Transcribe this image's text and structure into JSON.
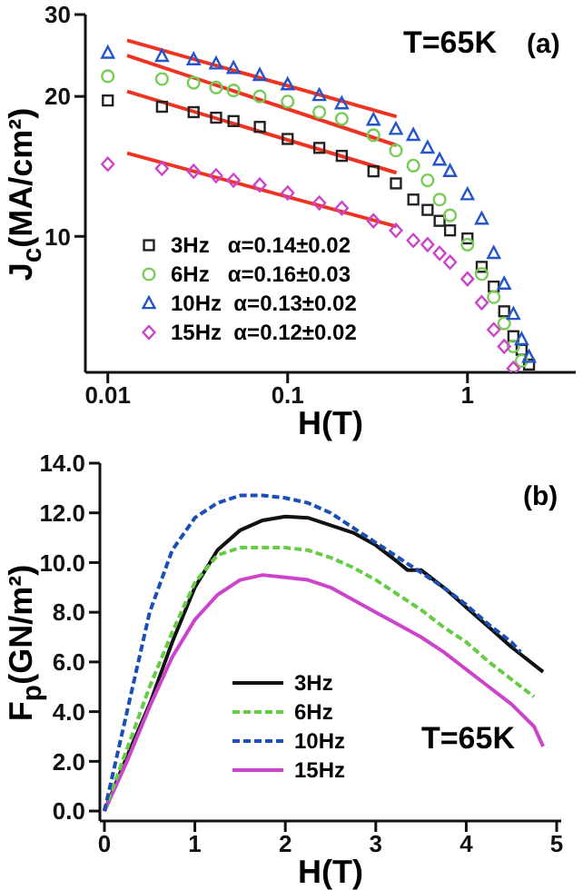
{
  "chart_data": [
    {
      "type": "scatter",
      "xlabel": "H(T)",
      "ylabel": "J$_{c}$(MA/cm²)",
      "annotations": [
        "T=65K",
        "(a)"
      ],
      "log": "xy",
      "xlim": [
        0.0075,
        4
      ],
      "xticks": [
        0.01,
        0.1,
        1
      ],
      "ylim": [
        5.1,
        30
      ],
      "yticks": [
        10,
        20,
        30
      ],
      "legend": "bottom left",
      "x": [
        0.01,
        0.02,
        0.03,
        0.04,
        0.05,
        0.07,
        0.1,
        0.15,
        0.2,
        0.3,
        0.4,
        0.5,
        0.6,
        0.7,
        0.8,
        1.0,
        1.2,
        1.4,
        1.6,
        1.8,
        2.0,
        2.2
      ],
      "series": [
        {
          "name": "3Hz   α=0.14±0.02",
          "color": "#222222",
          "marker": "square",
          "values": [
            19.6,
            19.0,
            18.5,
            18.0,
            17.7,
            17.2,
            16.2,
            15.5,
            14.9,
            13.8,
            13.0,
            12.0,
            11.4,
            10.8,
            10.3,
            9.9,
            8.6,
            7.8,
            6.9,
            6.1,
            5.7,
            5.3
          ]
        },
        {
          "name": "6Hz   α=0.16±0.03",
          "color": "#77cc55",
          "marker": "circle",
          "values": [
            22.1,
            21.8,
            21.4,
            20.9,
            20.6,
            20.0,
            19.5,
            18.5,
            17.9,
            16.5,
            15.3,
            14.2,
            13.2,
            12.0,
            11.1,
            9.6,
            8.3,
            7.4,
            6.5,
            5.8,
            5.4,
            null
          ]
        },
        {
          "name": "10Hz  α=0.13±0.02",
          "color": "#2255cc",
          "marker": "triangle",
          "values": [
            24.8,
            24.4,
            24.0,
            23.5,
            23.0,
            22.2,
            21.2,
            20.1,
            19.3,
            17.8,
            17.0,
            16.5,
            15.5,
            14.6,
            13.8,
            12.3,
            10.9,
            9.2,
            7.9,
            6.8,
            6.0,
            5.5
          ]
        },
        {
          "name": "15Hz  α=0.12±0.02",
          "color": "#cc44cc",
          "marker": "diamond",
          "values": [
            14.3,
            14.0,
            13.8,
            13.5,
            13.2,
            12.9,
            12.4,
            11.8,
            11.5,
            10.8,
            10.3,
            9.8,
            9.6,
            9.2,
            8.8,
            8.1,
            7.2,
            6.3,
            5.8,
            5.2,
            null,
            null
          ]
        },
        {
          "type": "line",
          "color": "#ee3322",
          "x": [
            0.0128,
            0.403
          ],
          "values": [
            26.4,
            18.1
          ]
        },
        {
          "type": "line",
          "color": "#ee3322",
          "x": [
            0.0128,
            0.403
          ],
          "values": [
            24.5,
            15.7
          ]
        },
        {
          "type": "line",
          "color": "#ee3322",
          "x": [
            0.0128,
            0.403
          ],
          "values": [
            20.5,
            13.7
          ]
        },
        {
          "type": "line",
          "color": "#ee3322",
          "x": [
            0.0128,
            0.403
          ],
          "values": [
            15.1,
            10.5
          ]
        }
      ]
    },
    {
      "type": "line",
      "xlabel": "H(T)",
      "ylabel": "F$_{p}$(GN/m²)",
      "annotations": [
        "(b)",
        "T=65K"
      ],
      "xlim": [
        -0.05,
        5.05
      ],
      "xticks": [
        0,
        1,
        2,
        3,
        4,
        5
      ],
      "ylim": [
        -0.4,
        14
      ],
      "yticks": [
        {
          "value": 0,
          "label": "0.0"
        },
        {
          "value": 2,
          "label": "2.0"
        },
        {
          "value": 4,
          "label": "4.0"
        },
        {
          "value": 6,
          "label": "6.0"
        },
        {
          "value": 8,
          "label": "8.0"
        },
        {
          "value": 10,
          "label": "10.0"
        },
        {
          "value": 12,
          "label": "12.0"
        },
        {
          "value": 14,
          "label": "14.0"
        }
      ],
      "legend": "bottom left",
      "series": [
        {
          "name": "3Hz",
          "color": "#111111",
          "line_style": "solid",
          "x": [
            0,
            0.25,
            0.5,
            0.75,
            1.0,
            1.25,
            1.5,
            1.75,
            2.0,
            2.25,
            2.5,
            2.75,
            3.0,
            3.25,
            3.35,
            3.5,
            3.75,
            4.0,
            4.25,
            4.5,
            4.85
          ],
          "values": [
            0,
            2.2,
            4.3,
            6.8,
            9.0,
            10.5,
            11.3,
            11.7,
            11.85,
            11.8,
            11.5,
            11.2,
            10.7,
            10.0,
            9.7,
            9.7,
            9.0,
            8.2,
            7.4,
            6.6,
            5.6
          ]
        },
        {
          "name": "6Hz",
          "color": "#66cc44",
          "line_style": "dashed",
          "x": [
            0,
            0.25,
            0.5,
            0.75,
            1.0,
            1.25,
            1.5,
            1.75,
            2.0,
            2.25,
            2.5,
            2.75,
            3.0,
            3.25,
            3.5,
            3.75,
            4.0,
            4.25,
            4.5,
            4.75
          ],
          "values": [
            0,
            2.5,
            5.0,
            7.2,
            9.2,
            10.3,
            10.6,
            10.6,
            10.6,
            10.5,
            10.2,
            9.8,
            9.3,
            8.7,
            8.1,
            7.4,
            6.8,
            6.0,
            5.3,
            4.6
          ]
        },
        {
          "name": "10Hz",
          "color": "#1a4fb5",
          "line_style": "dashed",
          "x": [
            0,
            0.25,
            0.5,
            0.75,
            1.0,
            1.25,
            1.5,
            1.75,
            2.0,
            2.25,
            2.5,
            2.75,
            3.0,
            3.25,
            3.5,
            3.75,
            4.0,
            4.25,
            4.5,
            4.6
          ],
          "values": [
            0,
            4.0,
            8.0,
            10.5,
            11.8,
            12.4,
            12.7,
            12.7,
            12.6,
            12.4,
            12.0,
            11.4,
            10.8,
            10.2,
            9.6,
            9.0,
            8.3,
            7.5,
            6.8,
            6.4
          ]
        },
        {
          "name": "15Hz",
          "color": "#cc44cc",
          "line_style": "solid",
          "x": [
            0,
            0.25,
            0.5,
            0.75,
            1.0,
            1.25,
            1.5,
            1.75,
            2.0,
            2.25,
            2.5,
            2.75,
            3.0,
            3.25,
            3.5,
            3.75,
            4.0,
            4.25,
            4.5,
            4.75,
            4.85
          ],
          "values": [
            0,
            2.0,
            4.2,
            6.2,
            7.7,
            8.7,
            9.3,
            9.5,
            9.4,
            9.3,
            9.0,
            8.5,
            8.0,
            7.5,
            7.0,
            6.4,
            5.7,
            5.0,
            4.3,
            3.4,
            2.6
          ]
        }
      ]
    }
  ]
}
